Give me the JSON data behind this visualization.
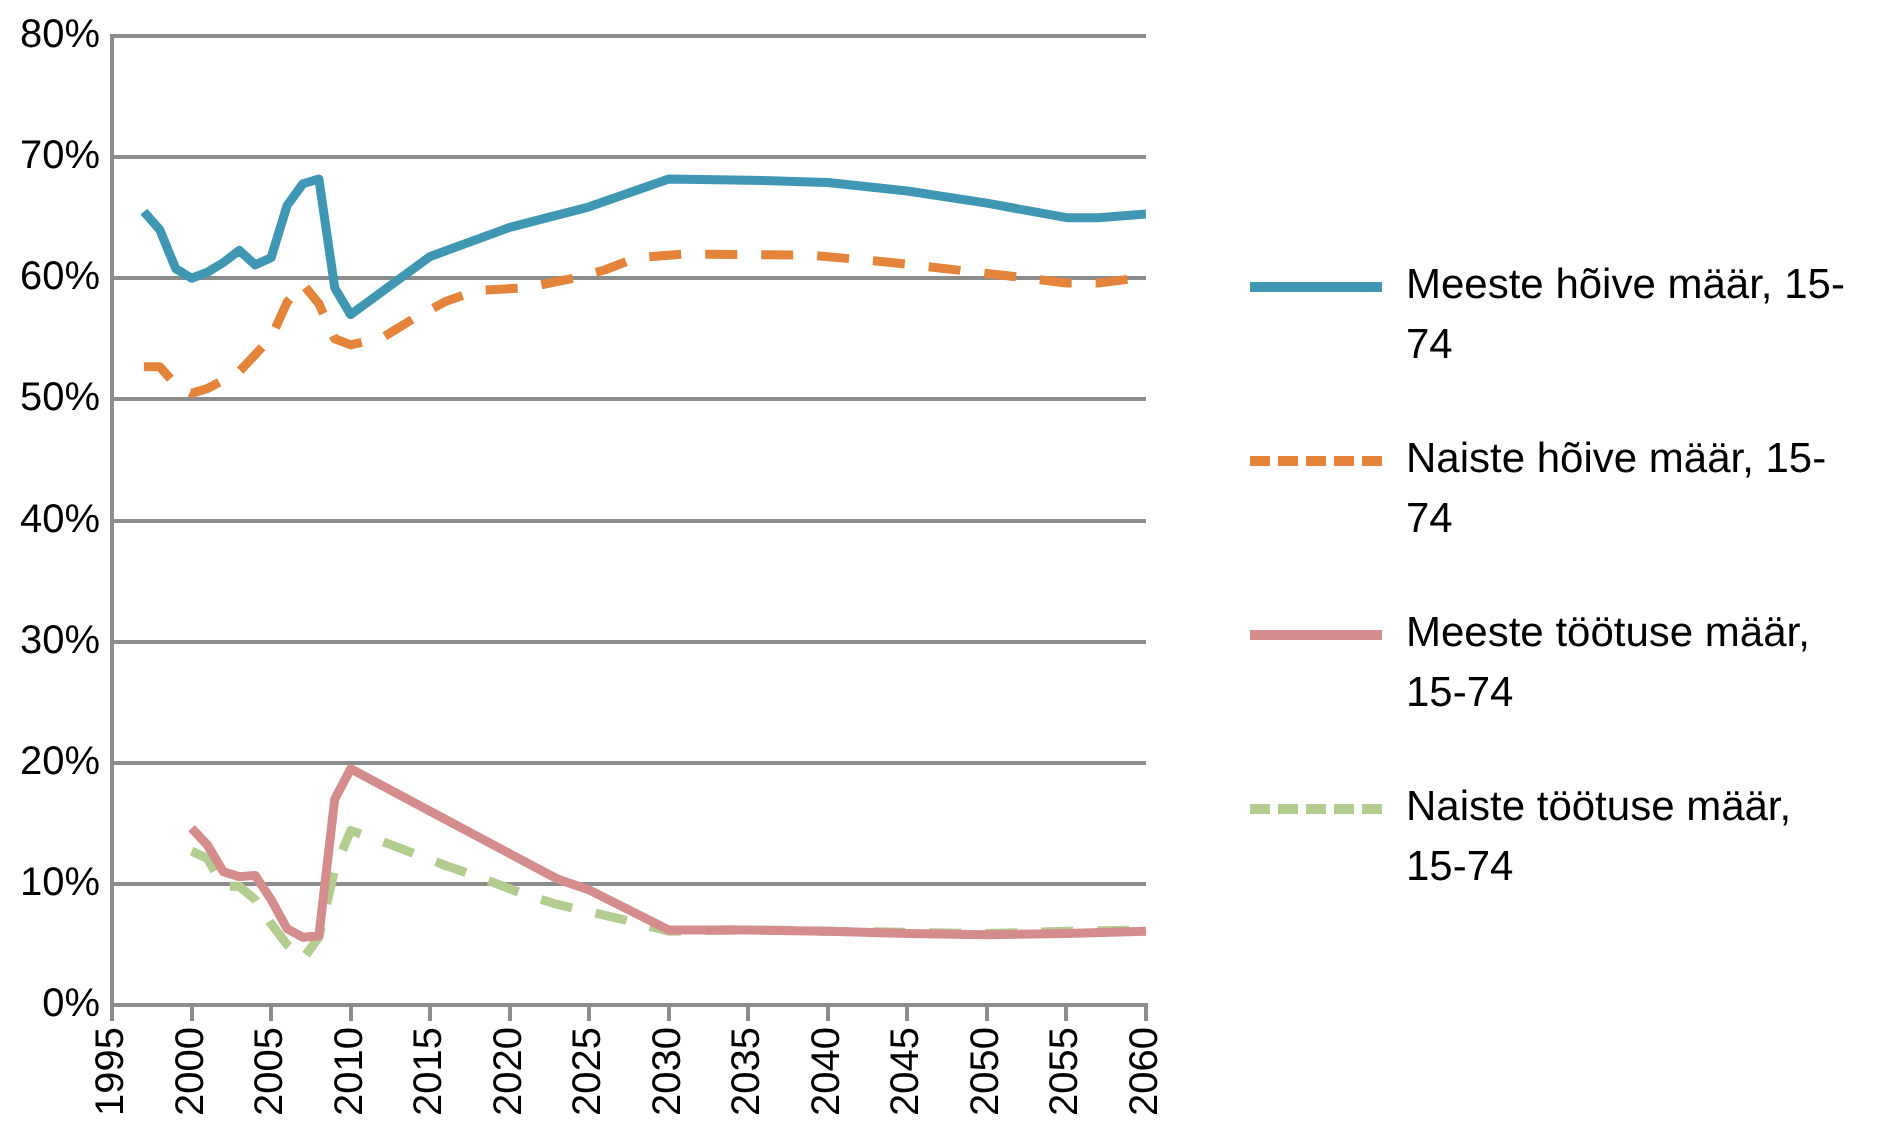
{
  "chart_data": {
    "type": "line",
    "xlim": [
      1995,
      2060
    ],
    "xticks": [
      1995,
      2000,
      2005,
      2010,
      2015,
      2020,
      2025,
      2030,
      2035,
      2040,
      2045,
      2050,
      2055,
      2060
    ],
    "ylim": [
      0,
      80
    ],
    "yticks": [
      {
        "value": 0,
        "label": "0%"
      },
      {
        "value": 10,
        "label": "10%"
      },
      {
        "value": 20,
        "label": "20%"
      },
      {
        "value": 30,
        "label": "30%"
      },
      {
        "value": 40,
        "label": "40%"
      },
      {
        "value": 50,
        "label": "50%"
      },
      {
        "value": 60,
        "label": "60%"
      },
      {
        "value": 70,
        "label": "70%"
      },
      {
        "value": 80,
        "label": "80%"
      }
    ],
    "grid": "y",
    "legend": "right",
    "marker": "none",
    "series": [
      {
        "name": "Meeste hõive määr, 15-74",
        "color": "#3f97b3",
        "line_style": "solid",
        "x": [
          1997,
          1998,
          1999,
          2000,
          2001,
          2002,
          2003,
          2004,
          2005,
          2006,
          2007,
          2008,
          2009,
          2010,
          2015,
          2020,
          2025,
          2030,
          2035,
          2040,
          2045,
          2050,
          2055,
          2057,
          2060
        ],
        "values": [
          65.5,
          64.0,
          60.8,
          60.0,
          60.5,
          61.3,
          62.3,
          61.1,
          61.7,
          66.0,
          67.8,
          68.2,
          59.2,
          57.0,
          61.8,
          64.2,
          65.9,
          68.2,
          68.1,
          67.9,
          67.2,
          66.2,
          65.0,
          65.0,
          65.3
        ]
      },
      {
        "name": "Naiste hõive määr, 15-74",
        "color": "#e3843a",
        "line_style": "dashed",
        "x": [
          1997,
          1998,
          1999,
          2000,
          2001,
          2003,
          2005,
          2006,
          2007,
          2008,
          2009,
          2010,
          2012,
          2014,
          2016,
          2018,
          2021,
          2024,
          2026,
          2028,
          2031,
          2039,
          2044,
          2050,
          2052,
          2055,
          2057,
          2060
        ],
        "values": [
          52.7,
          52.7,
          51.2,
          50.5,
          50.9,
          52.3,
          55.1,
          58.0,
          59.5,
          57.9,
          55.0,
          54.5,
          55.1,
          56.7,
          58.1,
          59.0,
          59.2,
          60.0,
          60.7,
          61.7,
          62.0,
          61.9,
          61.3,
          60.4,
          60.1,
          59.6,
          59.6,
          60.1
        ]
      },
      {
        "name": "Meeste töötuse määr, 15-74",
        "color": "#d48d8c",
        "line_style": "solid",
        "x": [
          2000,
          2001,
          2002,
          2003,
          2004,
          2005,
          2006,
          2007,
          2008,
          2009,
          2010,
          2015,
          2020,
          2023,
          2025,
          2030,
          2035,
          2040,
          2045,
          2050,
          2055,
          2060
        ],
        "values": [
          14.6,
          13.2,
          11.0,
          10.6,
          10.7,
          8.7,
          6.3,
          5.6,
          5.7,
          17.0,
          19.5,
          16.0,
          12.5,
          10.4,
          9.5,
          6.2,
          6.2,
          6.1,
          5.9,
          5.8,
          5.9,
          6.1
        ]
      },
      {
        "name": "Naiste töötuse määr, 15-74",
        "color": "#b3cc8f",
        "line_style": "dashed",
        "x": [
          2000,
          2001,
          2002,
          2003,
          2004,
          2005,
          2006,
          2007,
          2008,
          2009,
          2010,
          2012,
          2016,
          2018,
          2021,
          2023,
          2027,
          2030,
          2035,
          2040,
          2045,
          2050,
          2055,
          2060
        ],
        "values": [
          12.7,
          12.1,
          9.8,
          9.8,
          8.7,
          6.7,
          5.0,
          3.8,
          5.6,
          11.2,
          14.4,
          13.5,
          11.5,
          10.6,
          9.1,
          8.3,
          7.1,
          6.1,
          6.2,
          6.1,
          6.0,
          5.9,
          6.1,
          6.2
        ]
      }
    ]
  }
}
